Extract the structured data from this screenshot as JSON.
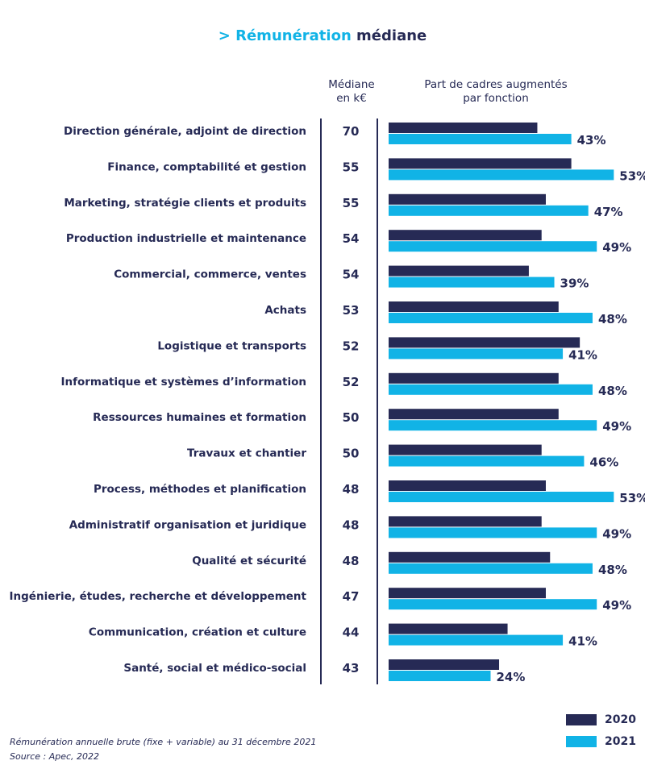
{
  "title": {
    "part1": "> Rémunération",
    "part2": "médiane"
  },
  "headers": {
    "median_line1": "Médiane",
    "median_line2": "en k€",
    "share_line1": "Part de cadres augmentés",
    "share_line2": "par fonction"
  },
  "legend": {
    "series_2020": "2020",
    "series_2021": "2021"
  },
  "notes": {
    "line1": "Rémunération annuelle brute (fixe + variable) au 31 décembre 2021",
    "line2": "Source : Apec, 2022"
  },
  "colors": {
    "series_2020": "#262a55",
    "series_2021": "#11b3e6"
  },
  "chart_data": {
    "type": "bar",
    "orientation": "horizontal",
    "title": "> Rémunération médiane",
    "categories": [
      "Direction générale, adjoint de direction",
      "Finance, comptabilité et gestion",
      "Marketing, stratégie clients et produits",
      "Production industrielle et maintenance",
      "Commercial, commerce, ventes",
      "Achats",
      "Logistique et transports",
      "Informatique et systèmes d’information",
      "Ressources humaines et formation",
      "Travaux et chantier",
      "Process, méthodes et planification",
      "Administratif organisation et juridique",
      "Qualité et sécurité",
      "Ingénierie, études, recherche et développement",
      "Communication, création et culture",
      "Santé, social et médico-social"
    ],
    "median_keur": [
      70,
      55,
      55,
      54,
      54,
      53,
      52,
      52,
      50,
      50,
      48,
      48,
      48,
      47,
      44,
      43
    ],
    "series": [
      {
        "name": "2020",
        "values": [
          35,
          43,
          37,
          36,
          33,
          40,
          45,
          40,
          40,
          36,
          37,
          36,
          38,
          37,
          28,
          26
        ]
      },
      {
        "name": "2021",
        "values": [
          43,
          53,
          47,
          49,
          39,
          48,
          41,
          48,
          49,
          46,
          53,
          49,
          48,
          49,
          41,
          24
        ]
      }
    ],
    "value_labels_2021": [
      "43%",
      "53%",
      "47%",
      "49%",
      "39%",
      "48%",
      "41%",
      "48%",
      "49%",
      "46%",
      "53%",
      "49%",
      "48%",
      "49%",
      "41%",
      "24%"
    ],
    "xlim": [
      0,
      56
    ],
    "legend_position": "bottom-right",
    "grid": false
  }
}
